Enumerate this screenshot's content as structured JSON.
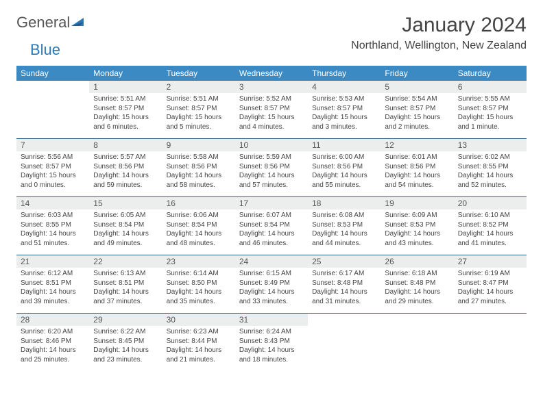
{
  "brand": {
    "general": "General",
    "blue": "Blue"
  },
  "title": "January 2024",
  "location": "Northland, Wellington, New Zealand",
  "colors": {
    "header_bg": "#3b8ac4",
    "header_text": "#ffffff",
    "daynum_bg": "#eceded",
    "rule": "#2b5a7a",
    "text": "#444444",
    "logo_blue": "#2a7ab8"
  },
  "dayHeaders": [
    "Sunday",
    "Monday",
    "Tuesday",
    "Wednesday",
    "Thursday",
    "Friday",
    "Saturday"
  ],
  "weeks": [
    {
      "nums": [
        "",
        "1",
        "2",
        "3",
        "4",
        "5",
        "6"
      ],
      "info": [
        null,
        {
          "sunrise": "Sunrise: 5:51 AM",
          "sunset": "Sunset: 8:57 PM",
          "daylight": "Daylight: 15 hours and 6 minutes."
        },
        {
          "sunrise": "Sunrise: 5:51 AM",
          "sunset": "Sunset: 8:57 PM",
          "daylight": "Daylight: 15 hours and 5 minutes."
        },
        {
          "sunrise": "Sunrise: 5:52 AM",
          "sunset": "Sunset: 8:57 PM",
          "daylight": "Daylight: 15 hours and 4 minutes."
        },
        {
          "sunrise": "Sunrise: 5:53 AM",
          "sunset": "Sunset: 8:57 PM",
          "daylight": "Daylight: 15 hours and 3 minutes."
        },
        {
          "sunrise": "Sunrise: 5:54 AM",
          "sunset": "Sunset: 8:57 PM",
          "daylight": "Daylight: 15 hours and 2 minutes."
        },
        {
          "sunrise": "Sunrise: 5:55 AM",
          "sunset": "Sunset: 8:57 PM",
          "daylight": "Daylight: 15 hours and 1 minute."
        }
      ]
    },
    {
      "nums": [
        "7",
        "8",
        "9",
        "10",
        "11",
        "12",
        "13"
      ],
      "info": [
        {
          "sunrise": "Sunrise: 5:56 AM",
          "sunset": "Sunset: 8:57 PM",
          "daylight": "Daylight: 15 hours and 0 minutes."
        },
        {
          "sunrise": "Sunrise: 5:57 AM",
          "sunset": "Sunset: 8:56 PM",
          "daylight": "Daylight: 14 hours and 59 minutes."
        },
        {
          "sunrise": "Sunrise: 5:58 AM",
          "sunset": "Sunset: 8:56 PM",
          "daylight": "Daylight: 14 hours and 58 minutes."
        },
        {
          "sunrise": "Sunrise: 5:59 AM",
          "sunset": "Sunset: 8:56 PM",
          "daylight": "Daylight: 14 hours and 57 minutes."
        },
        {
          "sunrise": "Sunrise: 6:00 AM",
          "sunset": "Sunset: 8:56 PM",
          "daylight": "Daylight: 14 hours and 55 minutes."
        },
        {
          "sunrise": "Sunrise: 6:01 AM",
          "sunset": "Sunset: 8:56 PM",
          "daylight": "Daylight: 14 hours and 54 minutes."
        },
        {
          "sunrise": "Sunrise: 6:02 AM",
          "sunset": "Sunset: 8:55 PM",
          "daylight": "Daylight: 14 hours and 52 minutes."
        }
      ]
    },
    {
      "nums": [
        "14",
        "15",
        "16",
        "17",
        "18",
        "19",
        "20"
      ],
      "info": [
        {
          "sunrise": "Sunrise: 6:03 AM",
          "sunset": "Sunset: 8:55 PM",
          "daylight": "Daylight: 14 hours and 51 minutes."
        },
        {
          "sunrise": "Sunrise: 6:05 AM",
          "sunset": "Sunset: 8:54 PM",
          "daylight": "Daylight: 14 hours and 49 minutes."
        },
        {
          "sunrise": "Sunrise: 6:06 AM",
          "sunset": "Sunset: 8:54 PM",
          "daylight": "Daylight: 14 hours and 48 minutes."
        },
        {
          "sunrise": "Sunrise: 6:07 AM",
          "sunset": "Sunset: 8:54 PM",
          "daylight": "Daylight: 14 hours and 46 minutes."
        },
        {
          "sunrise": "Sunrise: 6:08 AM",
          "sunset": "Sunset: 8:53 PM",
          "daylight": "Daylight: 14 hours and 44 minutes."
        },
        {
          "sunrise": "Sunrise: 6:09 AM",
          "sunset": "Sunset: 8:53 PM",
          "daylight": "Daylight: 14 hours and 43 minutes."
        },
        {
          "sunrise": "Sunrise: 6:10 AM",
          "sunset": "Sunset: 8:52 PM",
          "daylight": "Daylight: 14 hours and 41 minutes."
        }
      ]
    },
    {
      "nums": [
        "21",
        "22",
        "23",
        "24",
        "25",
        "26",
        "27"
      ],
      "info": [
        {
          "sunrise": "Sunrise: 6:12 AM",
          "sunset": "Sunset: 8:51 PM",
          "daylight": "Daylight: 14 hours and 39 minutes."
        },
        {
          "sunrise": "Sunrise: 6:13 AM",
          "sunset": "Sunset: 8:51 PM",
          "daylight": "Daylight: 14 hours and 37 minutes."
        },
        {
          "sunrise": "Sunrise: 6:14 AM",
          "sunset": "Sunset: 8:50 PM",
          "daylight": "Daylight: 14 hours and 35 minutes."
        },
        {
          "sunrise": "Sunrise: 6:15 AM",
          "sunset": "Sunset: 8:49 PM",
          "daylight": "Daylight: 14 hours and 33 minutes."
        },
        {
          "sunrise": "Sunrise: 6:17 AM",
          "sunset": "Sunset: 8:48 PM",
          "daylight": "Daylight: 14 hours and 31 minutes."
        },
        {
          "sunrise": "Sunrise: 6:18 AM",
          "sunset": "Sunset: 8:48 PM",
          "daylight": "Daylight: 14 hours and 29 minutes."
        },
        {
          "sunrise": "Sunrise: 6:19 AM",
          "sunset": "Sunset: 8:47 PM",
          "daylight": "Daylight: 14 hours and 27 minutes."
        }
      ]
    },
    {
      "nums": [
        "28",
        "29",
        "30",
        "31",
        "",
        "",
        ""
      ],
      "info": [
        {
          "sunrise": "Sunrise: 6:20 AM",
          "sunset": "Sunset: 8:46 PM",
          "daylight": "Daylight: 14 hours and 25 minutes."
        },
        {
          "sunrise": "Sunrise: 6:22 AM",
          "sunset": "Sunset: 8:45 PM",
          "daylight": "Daylight: 14 hours and 23 minutes."
        },
        {
          "sunrise": "Sunrise: 6:23 AM",
          "sunset": "Sunset: 8:44 PM",
          "daylight": "Daylight: 14 hours and 21 minutes."
        },
        {
          "sunrise": "Sunrise: 6:24 AM",
          "sunset": "Sunset: 8:43 PM",
          "daylight": "Daylight: 14 hours and 18 minutes."
        },
        null,
        null,
        null
      ]
    }
  ]
}
